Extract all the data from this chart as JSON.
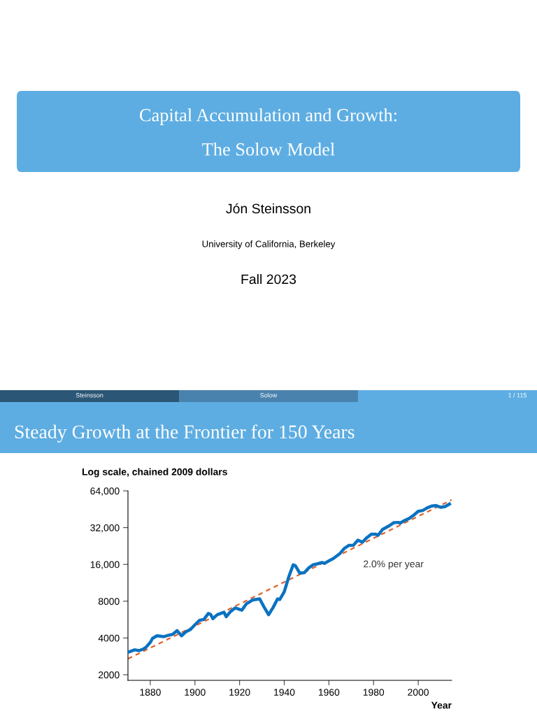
{
  "chart_data": {
    "type": "line",
    "title": "Steady Growth at the Frontier for 150 Years",
    "subtitle": "Log scale, chained 2009 dollars",
    "xlabel": "Year",
    "annotations": [
      "Capital Accumulation and Growth:",
      "The Solow Model",
      "Jón Steinsson",
      "University of California, Berkeley",
      "Fall 2023",
      "Steinsson",
      "Solow",
      "1 / 115",
      "2.0% per year"
    ],
    "series": [
      {
        "color": "#0a72c2",
        "line_style": "solid",
        "x": [
          1870,
          1873,
          1875,
          1877,
          1878,
          1880,
          1881,
          1883,
          1886,
          1888,
          1890,
          1892,
          1894,
          1896,
          1898,
          1900,
          1902,
          1904,
          1906,
          1907,
          1908,
          1910,
          1913,
          1914,
          1916,
          1918,
          1921,
          1923,
          1926,
          1929,
          1931,
          1933,
          1935,
          1937,
          1938,
          1940,
          1942,
          1944,
          1945,
          1947,
          1949,
          1951,
          1953,
          1955,
          1957,
          1958,
          1960,
          1962,
          1965,
          1967,
          1969,
          1971,
          1973,
          1975,
          1977,
          1979,
          1981,
          1982,
          1984,
          1987,
          1989,
          1991,
          1992,
          1994,
          1996,
          1998,
          2000,
          2002,
          2004,
          2006,
          2008,
          2010,
          2012,
          2014
        ],
        "values": [
          3050,
          3200,
          3150,
          3250,
          3350,
          3680,
          3970,
          4170,
          4100,
          4200,
          4280,
          4590,
          4170,
          4500,
          4700,
          5130,
          5570,
          5680,
          6350,
          6250,
          5750,
          6200,
          6500,
          5970,
          6600,
          7050,
          6750,
          7600,
          8200,
          8350,
          7150,
          6200,
          7100,
          8350,
          8250,
          9550,
          12600,
          15900,
          15600,
          13550,
          13700,
          15000,
          15900,
          16200,
          16600,
          16300,
          17100,
          17900,
          19700,
          21700,
          22900,
          23000,
          25300,
          24300,
          26500,
          28300,
          28300,
          27700,
          30900,
          33100,
          35100,
          35300,
          34900,
          36700,
          38100,
          40500,
          43500,
          44200,
          46400,
          48100,
          48500,
          47000,
          47600,
          49900
        ]
      },
      {
        "color": "#e0622a",
        "line_style": "dashed",
        "x": [
          1870,
          2015
        ],
        "values": [
          2700,
          54000
        ]
      }
    ],
    "log": true,
    "xlim": [
      1870,
      2015
    ],
    "xticks": [
      1880,
      1900,
      1920,
      1940,
      1960,
      1980,
      2000
    ],
    "ylim": [
      1800,
      64000
    ],
    "yticks": [
      {
        "value": 2000,
        "label": "2000"
      },
      {
        "value": 4000,
        "label": "4000"
      },
      {
        "value": 8000,
        "label": "8000"
      },
      {
        "value": 16000,
        "label": "16,000"
      },
      {
        "value": 32000,
        "label": "32,000"
      },
      {
        "value": 64000,
        "label": "64,000"
      }
    ],
    "grid": false
  }
}
